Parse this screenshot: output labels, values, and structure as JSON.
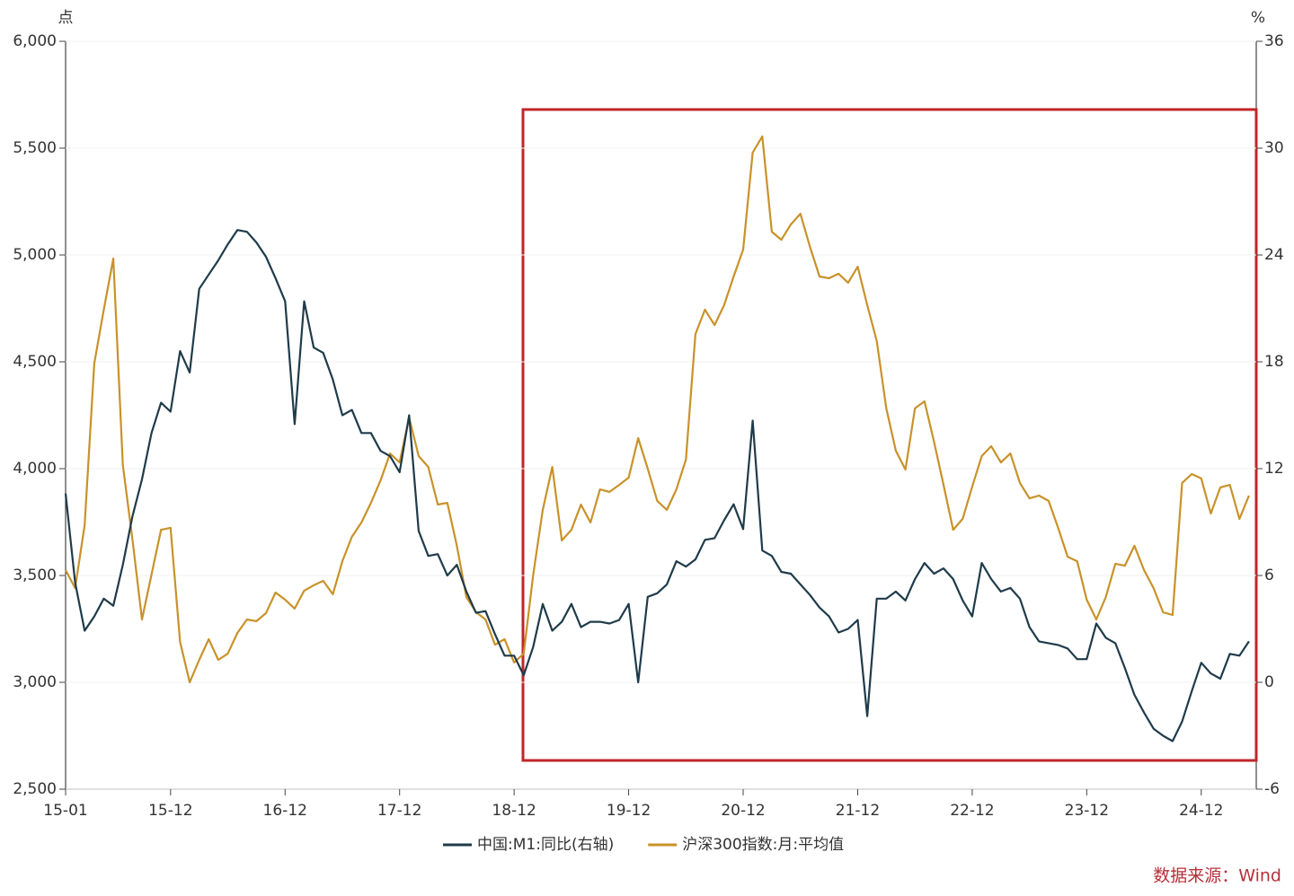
{
  "chart_data": {
    "type": "line",
    "y_unit": "点",
    "y2_unit": "%",
    "source": "数据来源：Wind",
    "categories": [
      "15-01",
      null,
      null,
      null,
      null,
      null,
      null,
      null,
      null,
      null,
      null,
      "15-12",
      null,
      null,
      null,
      null,
      null,
      null,
      null,
      null,
      null,
      null,
      null,
      "16-12",
      null,
      null,
      null,
      null,
      null,
      null,
      null,
      null,
      null,
      null,
      null,
      "17-12",
      null,
      null,
      null,
      null,
      null,
      null,
      null,
      null,
      null,
      null,
      null,
      "18-12",
      null,
      null,
      null,
      null,
      null,
      null,
      null,
      null,
      null,
      null,
      null,
      "19-12",
      null,
      null,
      null,
      null,
      null,
      null,
      null,
      null,
      null,
      null,
      null,
      "20-12",
      null,
      null,
      null,
      null,
      null,
      null,
      null,
      null,
      null,
      null,
      null,
      "21-12",
      null,
      null,
      null,
      null,
      null,
      null,
      null,
      null,
      null,
      null,
      null,
      "22-12",
      null,
      null,
      null,
      null,
      null,
      null,
      null,
      null,
      null,
      null,
      null,
      "23-12",
      null,
      null,
      null,
      null,
      null,
      null,
      null,
      null,
      null,
      null,
      null,
      "24-12",
      null,
      null,
      null,
      null,
      null
    ],
    "ylim": [
      2500,
      6000
    ],
    "yticks": [
      {
        "value": 2500,
        "label": "2,500"
      },
      {
        "value": 3000,
        "label": "3,000"
      },
      {
        "value": 3500,
        "label": "3,500"
      },
      {
        "value": 4000,
        "label": "4,000"
      },
      {
        "value": 4500,
        "label": "4,500"
      },
      {
        "value": 5000,
        "label": "5,000"
      },
      {
        "value": 5500,
        "label": "5,500"
      },
      {
        "value": 6000,
        "label": "6,000"
      }
    ],
    "y2lim": [
      -6,
      36
    ],
    "y2ticks": [
      -6,
      0,
      6,
      12,
      18,
      24,
      30,
      36
    ],
    "grid": true,
    "series": [
      {
        "name": "中国:M1:同比(右轴)",
        "color": "#1f3b4a",
        "axis": "y2",
        "values": [
          10.6,
          5.6,
          2.9,
          3.7,
          4.7,
          4.3,
          6.6,
          9.3,
          11.4,
          14.0,
          15.7,
          15.2,
          18.6,
          17.4,
          22.1,
          22.9,
          23.7,
          24.6,
          25.4,
          25.3,
          24.7,
          23.9,
          22.7,
          21.4,
          14.5,
          21.4,
          18.8,
          18.5,
          17.0,
          15.0,
          15.3,
          14.0,
          14.0,
          13.0,
          12.7,
          11.8,
          15.0,
          8.5,
          7.1,
          7.2,
          6.0,
          6.6,
          5.1,
          3.9,
          4.0,
          2.7,
          1.5,
          1.5,
          0.4,
          2.0,
          4.4,
          2.9,
          3.4,
          4.4,
          3.1,
          3.4,
          3.4,
          3.3,
          3.5,
          4.4,
          0.0,
          4.8,
          5.0,
          5.5,
          6.8,
          6.5,
          6.9,
          8.0,
          8.1,
          9.1,
          10.0,
          8.6,
          14.7,
          7.4,
          7.1,
          6.2,
          6.1,
          5.5,
          4.9,
          4.2,
          3.7,
          2.8,
          3.0,
          3.5,
          -1.9,
          4.7,
          4.7,
          5.1,
          4.6,
          5.8,
          6.7,
          6.1,
          6.4,
          5.8,
          4.6,
          3.7,
          6.7,
          5.8,
          5.1,
          5.3,
          4.7,
          3.1,
          2.3,
          2.2,
          2.1,
          1.9,
          1.3,
          1.3,
          3.3,
          2.5,
          2.2,
          0.8,
          -0.7,
          -1.7,
          -2.6,
          -3.0,
          -3.3,
          -2.2,
          -0.5,
          1.1,
          0.5,
          0.2,
          1.6,
          1.5,
          2.3
        ]
      },
      {
        "name": "沪深300指数:月:平均值",
        "color": "#c8922a",
        "values": [
          3525,
          3441,
          3735,
          4492,
          4744,
          4983,
          4017,
          3672,
          3294,
          3504,
          3714,
          3723,
          3189,
          3000,
          3105,
          3202,
          3105,
          3134,
          3231,
          3294,
          3286,
          3324,
          3420,
          3387,
          3345,
          3429,
          3454,
          3475,
          3412,
          3567,
          3681,
          3748,
          3840,
          3945,
          4071,
          4029,
          4239,
          4059,
          4008,
          3832,
          3840,
          3639,
          3399,
          3328,
          3294,
          3176,
          3202,
          3093,
          3134,
          3504,
          3807,
          4008,
          3664,
          3714,
          3832,
          3748,
          3903,
          3891,
          3924,
          3958,
          4143,
          4000,
          3849,
          3807,
          3903,
          4042,
          4630,
          4744,
          4672,
          4765,
          4899,
          5025,
          5479,
          5555,
          5109,
          5071,
          5143,
          5193,
          5038,
          4899,
          4891,
          4912,
          4870,
          4945,
          4765,
          4597,
          4282,
          4084,
          3996,
          4282,
          4315,
          4126,
          3924,
          3714,
          3765,
          3916,
          4059,
          4105,
          4029,
          4071,
          3933,
          3861,
          3874,
          3849,
          3723,
          3588,
          3567,
          3387,
          3294,
          3399,
          3555,
          3546,
          3639,
          3525,
          3441,
          3328,
          3315,
          3933,
          3975,
          3954,
          3790,
          3912,
          3924,
          3765,
          3874
        ]
      }
    ]
  }
}
